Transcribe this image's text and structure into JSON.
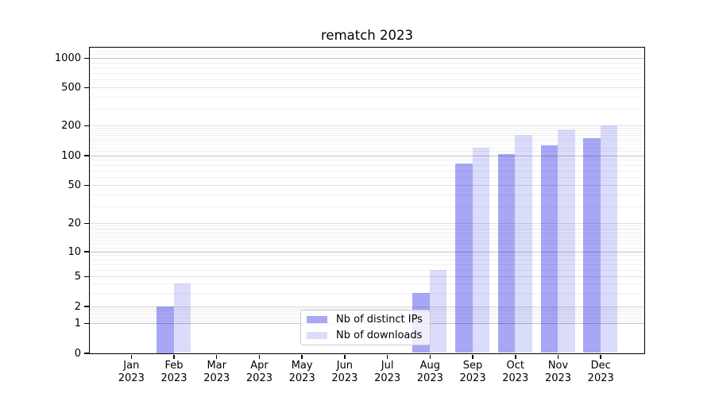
{
  "title": "rematch 2023",
  "colors": {
    "bar_distinct_ips": "#a8a8f5",
    "bar_downloads": "#dcdcf8",
    "grid_major": "#c3c3c3",
    "grid_minor": "#f0f0f0",
    "axis": "#000000"
  },
  "legend": {
    "items": [
      {
        "label": "Nb of distinct IPs",
        "color": "#a8a8f5"
      },
      {
        "label": "Nb of downloads",
        "color": "#dcdcf8"
      }
    ]
  },
  "chart_data": {
    "type": "bar",
    "title": "rematch 2023",
    "categories": [
      "Jan 2023",
      "Feb 2023",
      "Mar 2023",
      "Apr 2023",
      "May 2023",
      "Jun 2023",
      "Jul 2023",
      "Aug 2023",
      "Sep 2023",
      "Oct 2023",
      "Nov 2023",
      "Dec 2023"
    ],
    "series": [
      {
        "name": "Nb of distinct IPs",
        "color": "#a8a8f5",
        "values": [
          0,
          2,
          0,
          0,
          0,
          0,
          0,
          3,
          82,
          103,
          125,
          148
        ]
      },
      {
        "name": "Nb of downloads",
        "color": "#dcdcf8",
        "values": [
          0,
          4,
          0,
          0,
          0,
          0,
          0,
          6,
          120,
          160,
          182,
          200
        ]
      }
    ],
    "xlabel": "",
    "ylabel": "",
    "yscale": "symlog",
    "yticks": [
      0,
      1,
      2,
      5,
      10,
      20,
      50,
      100,
      200,
      500,
      1000
    ],
    "ylim": [
      0,
      1300
    ],
    "grid": "on",
    "legend_position": "inside lower center"
  }
}
